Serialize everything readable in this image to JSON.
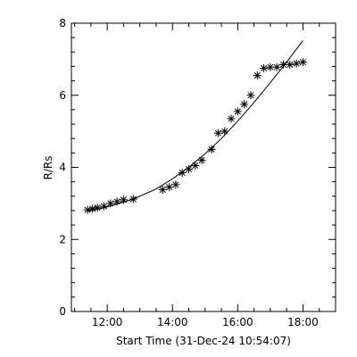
{
  "chart_data": {
    "type": "scatter",
    "title": "",
    "xlabel": "Start Time (31-Dec-24 10:54:07)",
    "ylabel": "R/Rs",
    "xlim": [
      "10:54:07",
      "19:00:00"
    ],
    "ylim": [
      0,
      8
    ],
    "x_ticks": [
      "12:00",
      "14:00",
      "16:00",
      "18:00"
    ],
    "y_ticks": [
      0,
      2,
      4,
      6,
      8
    ],
    "grid": false,
    "legend": "none",
    "series": [
      {
        "marker": "asterisk",
        "x": [
          "11:24",
          "11:33",
          "11:42",
          "11:54",
          "12:06",
          "12:18",
          "12:30",
          "12:48",
          "13:42",
          "13:54",
          "14:06",
          "14:18",
          "14:30",
          "14:42",
          "14:54",
          "15:12",
          "15:24",
          "15:36",
          "15:48",
          "16:00",
          "16:12",
          "16:24",
          "16:36",
          "16:48",
          "17:00",
          "17:12",
          "17:24",
          "17:36",
          "17:48",
          "18:00"
        ],
        "y": [
          2.82,
          2.85,
          2.88,
          2.92,
          3.0,
          3.05,
          3.1,
          3.12,
          3.38,
          3.45,
          3.52,
          3.85,
          3.95,
          4.05,
          4.2,
          4.5,
          4.95,
          5.0,
          5.35,
          5.55,
          5.75,
          6.0,
          6.55,
          6.75,
          6.78,
          6.78,
          6.85,
          6.85,
          6.88,
          6.92
        ]
      },
      {
        "style": "line",
        "x": [
          "11:24",
          "12:00",
          "12:48",
          "13:30",
          "14:00",
          "14:30",
          "15:00",
          "15:30",
          "16:00",
          "16:30",
          "17:00",
          "17:30",
          "18:00"
        ],
        "y": [
          2.78,
          2.9,
          3.12,
          3.4,
          3.68,
          4.0,
          4.38,
          4.8,
          5.28,
          5.8,
          6.35,
          6.92,
          7.52
        ]
      }
    ],
    "colors": {
      "axis": "#000000",
      "data": "#000000",
      "background": "#ffffff"
    }
  }
}
